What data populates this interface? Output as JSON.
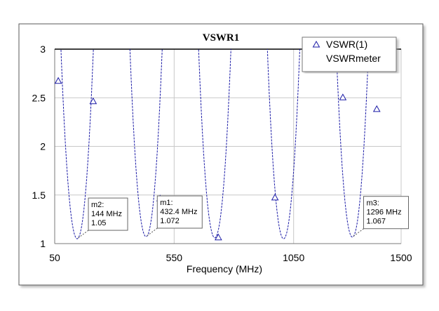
{
  "chart_data": {
    "type": "line",
    "title": "VSWR1",
    "xlabel": "Frequency (MHz)",
    "ylabel": "",
    "xlim": [
      50,
      1500
    ],
    "ylim": [
      1,
      3
    ],
    "xticks": [
      50,
      550,
      1050,
      1500
    ],
    "yticks": [
      1,
      1.5,
      2,
      2.5,
      3
    ],
    "grid": true,
    "legend_position": "top-right",
    "legend": [
      {
        "label": "VSWR(1)",
        "symbol": "triangle"
      },
      {
        "label": "VSWRmeter",
        "symbol": "none"
      }
    ],
    "series": [
      {
        "name": "VSWR(1)",
        "color": "#1a1aa6",
        "minima": [
          {
            "x": 144,
            "y": 1.05
          },
          {
            "x": 432.4,
            "y": 1.072
          },
          {
            "x": 720,
            "y": 1.06
          },
          {
            "x": 1008,
            "y": 1.05
          },
          {
            "x": 1296,
            "y": 1.067
          }
        ],
        "half_width": 76,
        "symbol_points": [
          {
            "x": 65,
            "y": 2.67
          },
          {
            "x": 211,
            "y": 2.46
          },
          {
            "x": 491,
            "y": 1.46
          },
          {
            "x": 735,
            "y": 1.06
          },
          {
            "x": 972,
            "y": 1.47
          },
          {
            "x": 1256,
            "y": 2.5
          },
          {
            "x": 1398,
            "y": 2.38
          }
        ]
      }
    ],
    "markers": [
      {
        "name": "m2:",
        "freq": "144 MHz",
        "value": "1.05",
        "x": 144,
        "y": 1.05
      },
      {
        "name": "m1:",
        "freq": "432.4 MHz",
        "value": "1.072",
        "x": 432.4,
        "y": 1.072
      },
      {
        "name": "m3:",
        "freq": "1296 MHz",
        "value": "1.067",
        "x": 1296,
        "y": 1.067
      }
    ]
  }
}
